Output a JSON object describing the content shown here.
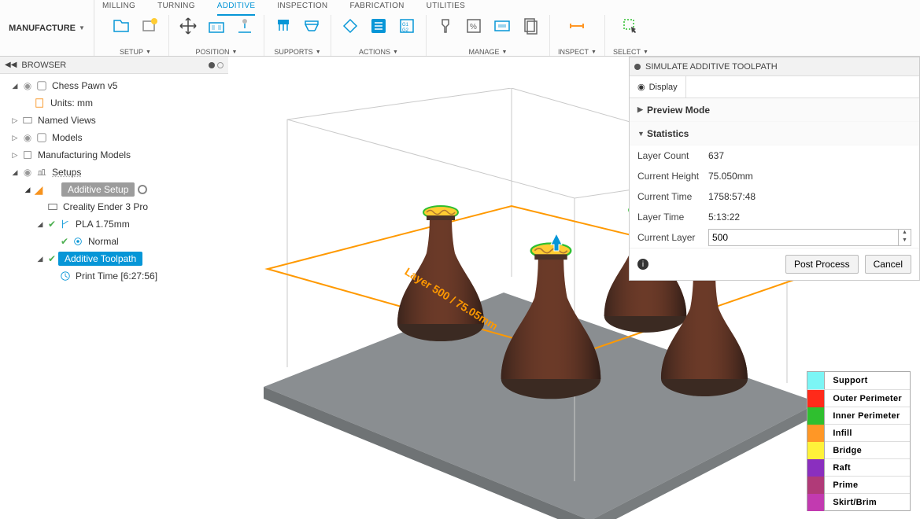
{
  "workspace": {
    "label": "MANUFACTURE"
  },
  "tabs": [
    "MILLING",
    "TURNING",
    "ADDITIVE",
    "INSPECTION",
    "FABRICATION",
    "UTILITIES"
  ],
  "tabs_active_index": 2,
  "ribbon": {
    "setup": "SETUP",
    "position": "POSITION",
    "supports": "SUPPORTS",
    "actions": "ACTIONS",
    "manage": "MANAGE",
    "inspect": "INSPECT",
    "select": "SELECT"
  },
  "browser": {
    "title": "BROWSER",
    "root": "Chess Pawn v5",
    "units": "Units: mm",
    "named_views": "Named Views",
    "models": "Models",
    "mfg_models": "Manufacturing Models",
    "setups": "Setups",
    "additive_setup": "Additive Setup",
    "printer": "Creality Ender 3 Pro",
    "material": "PLA 1.75mm",
    "preset": "Normal",
    "toolpath": "Additive Toolpath",
    "print_time": "Print Time [6:27:56]"
  },
  "viewport": {
    "layer_label": "Layer 500 / 75.05mm",
    "build_plate_color": "#8a8e91",
    "bbox_color": "#ff9900",
    "vase_body_color": "#6b3a28",
    "vase_top_outer": "#2fbf2f",
    "vase_top_infill": "#ffcc33"
  },
  "sim": {
    "title": "SIMULATE ADDITIVE TOOLPATH",
    "display_tab": "Display",
    "preview_mode": "Preview Mode",
    "statistics": "Statistics",
    "stats": {
      "layer_count_k": "Layer Count",
      "layer_count_v": "637",
      "current_height_k": "Current Height",
      "current_height_v": "75.050mm",
      "current_time_k": "Current Time",
      "current_time_v": "1758:57:48",
      "layer_time_k": "Layer Time",
      "layer_time_v": "5:13:22",
      "current_layer_k": "Current Layer",
      "current_layer_v": "500"
    },
    "post_process": "Post Process",
    "cancel": "Cancel"
  },
  "legend": [
    {
      "color": "#7cf5f5",
      "label": "Support"
    },
    {
      "color": "#ff2a1a",
      "label": "Outer Perimeter"
    },
    {
      "color": "#2fbf2f",
      "label": "Inner Perimeter"
    },
    {
      "color": "#ff9726",
      "label": "Infill"
    },
    {
      "color": "#fff23a",
      "label": "Bridge"
    },
    {
      "color": "#8a2fbf",
      "label": "Raft"
    },
    {
      "color": "#b03a78",
      "label": "Prime"
    },
    {
      "color": "#c23ab0",
      "label": "Skirt/Brim"
    }
  ]
}
